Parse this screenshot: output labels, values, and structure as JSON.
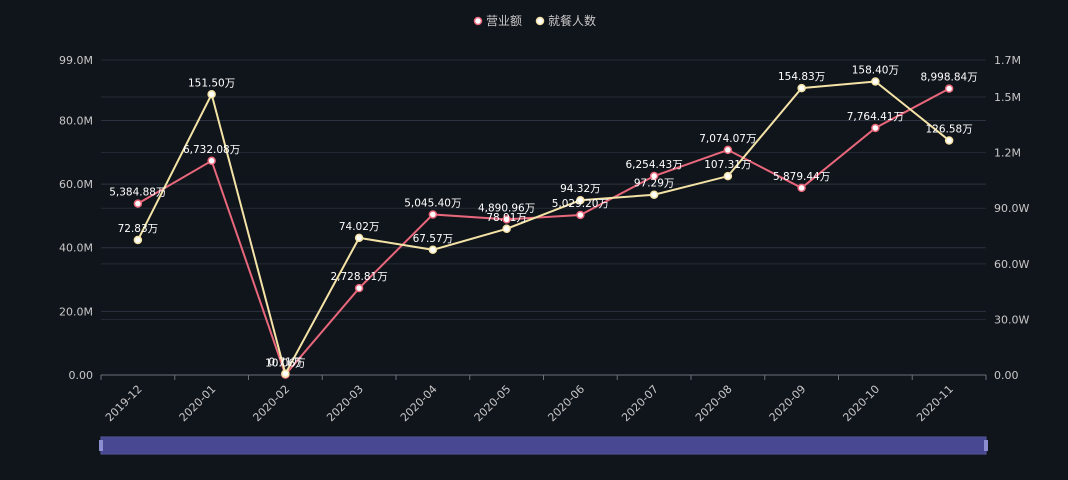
{
  "chart_data": {
    "type": "line",
    "categories": [
      "2019-12",
      "2020-01",
      "2020-02",
      "2020-03",
      "2020-04",
      "2020-05",
      "2020-06",
      "2020-07",
      "2020-08",
      "2020-09",
      "2020-10",
      "2020-11"
    ],
    "series": [
      {
        "name": "营业额",
        "color": "#e8677b",
        "axis": "left",
        "values": [
          5384.88,
          6732.08,
          10.06,
          2728.81,
          5045.4,
          4890.96,
          5029.2,
          6254.43,
          7074.07,
          5879.44,
          7764.41,
          8998.84
        ],
        "labels": [
          "5,384.88万",
          "6,732.08万",
          "10.06万",
          "2,728.81万",
          "5,045.40万",
          "4,890.96万",
          "5,029.20万",
          "6,254.43万",
          "7,074.07万",
          "5,879.44万",
          "7,764.41万",
          "8,998.84万"
        ]
      },
      {
        "name": "就餐人数",
        "color": "#f4e3a6",
        "axis": "right",
        "values": [
          72.83,
          151.5,
          0.71,
          74.02,
          67.57,
          78.91,
          94.32,
          97.29,
          107.31,
          154.83,
          158.4,
          126.58
        ],
        "labels": [
          "72.83万",
          "151.50万",
          "0.71万",
          "74.02万",
          "67.57万",
          "78.91万",
          "94.32万",
          "97.29万",
          "107.31万",
          "154.83万",
          "158.40万",
          "126.58万"
        ]
      }
    ],
    "y_left": {
      "ylim": [
        0,
        9900
      ],
      "ticks": [
        "0.00",
        "20.0M",
        "40.0M",
        "60.0M",
        "80.0M",
        "99.0M"
      ],
      "tick_values": [
        0,
        2000,
        4000,
        6000,
        8000,
        9900
      ]
    },
    "y_right": {
      "ylim": [
        0,
        170
      ],
      "ticks": [
        "0.00",
        "30.0W",
        "60.0W",
        "90.0W",
        "1.2M",
        "1.5M",
        "1.7M"
      ],
      "tick_values": [
        0,
        30,
        60,
        90,
        120,
        150,
        170
      ]
    },
    "legend_position": "top-center",
    "grid": true,
    "datazoom": {
      "visible": true,
      "range_percent": [
        0,
        100
      ]
    }
  }
}
